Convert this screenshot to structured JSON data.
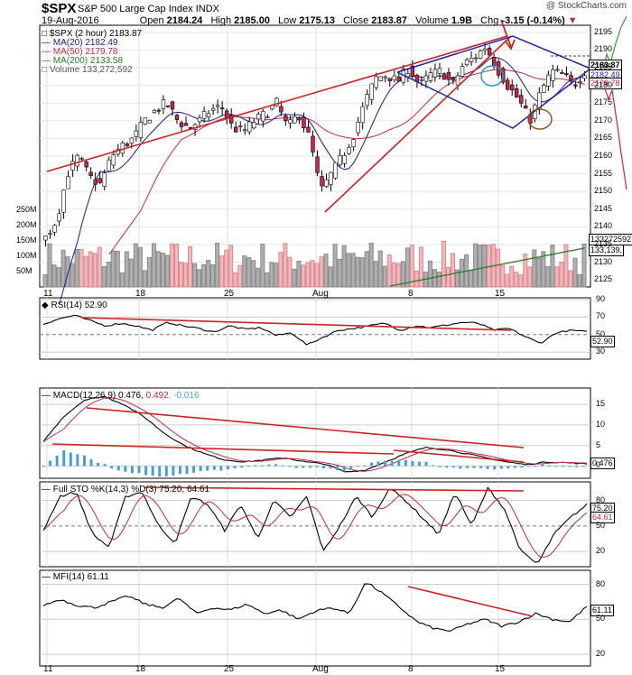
{
  "header": {
    "symbol": "$SPX",
    "name": "S&P 500 Large Cap Index",
    "exchange": "INDX",
    "date": "19-Aug-2016",
    "open_label": "Open",
    "open": "2184.24",
    "high_label": "High",
    "high": "2185.00",
    "low_label": "Low",
    "low": "2175.13",
    "close_label": "Close",
    "close": "2183.87",
    "volume_label": "Volume",
    "volume": "1.9B",
    "chg_label": "Chg",
    "chg": "-3.15 (-0.14%)",
    "watermark": "@ StockCharts.com"
  },
  "legend": {
    "price": "$SPX (2 hour) 2183.87",
    "ma20": "MA(20) 2182.49",
    "ma50": "MA(50) 2179.78",
    "ma200": "MA(200) 2133.58",
    "volume": "Volume 133,272,592"
  },
  "tags": {
    "close": "2183.87",
    "ma20": "2182.49",
    "ma50": "2179.78",
    "vol1": "133272592",
    "vol2": "133,139,"
  },
  "panels": {
    "rsi": {
      "label": "RSI(14) 52.90",
      "tag": "52.90"
    },
    "macd": {
      "label_a": "MACD(12,26,9) 0.476, ",
      "label_b": "0.492",
      "label_c": ", -0.016",
      "tag": "0.476"
    },
    "sto": {
      "label": "Full STO %K(14,3) %D(3) 75.20, 64.61",
      "tag_k": "75.20",
      "tag_d": "64.61"
    },
    "mfi": {
      "label": "MFI(14) 61.11",
      "tag": "61.11"
    }
  },
  "colors": {
    "up_candle": "#ffffff",
    "down_candle": "#c4284a",
    "ma20": "#1a1a99",
    "ma50": "#c4284a",
    "ma200": "#2a7a2a",
    "trend_red": "#cc2222",
    "trend_blue": "#2222aa",
    "vol_up": "#b0b0b0",
    "vol_down": "#f0b8c0",
    "macd_hist": "#4a9fcf"
  },
  "chart_data": [
    {
      "type": "candlestick",
      "panel": "price",
      "title": "$SPX S&P 500 Large Cap Index",
      "y_ticks": [
        2125,
        2130,
        2135,
        2140,
        2145,
        2150,
        2155,
        2160,
        2165,
        2170,
        2175,
        2180,
        2185,
        2190,
        2195
      ],
      "ylim": [
        2123,
        2197
      ],
      "x_tick_labels": [
        "11",
        "18",
        "25",
        "Aug",
        "8",
        "15"
      ],
      "series": [
        {
          "name": "$SPX (2 hour)",
          "last": 2183.87
        },
        {
          "name": "MA(20)",
          "last": 2182.49
        },
        {
          "name": "MA(50)",
          "last": 2179.78
        },
        {
          "name": "MA(200)",
          "last": 2133.58
        }
      ],
      "close_anchors": [
        2137,
        2142,
        2155,
        2160,
        2154,
        2152,
        2160,
        2163,
        2165,
        2170,
        2173,
        2175,
        2170,
        2168,
        2170,
        2173,
        2174,
        2168,
        2167,
        2170,
        2172,
        2175,
        2168,
        2172,
        2165,
        2150,
        2155,
        2160,
        2166,
        2175,
        2182,
        2183,
        2181,
        2185,
        2180,
        2183,
        2184,
        2180,
        2186,
        2188,
        2191,
        2185,
        2180,
        2176,
        2170,
        2178,
        2184,
        2183,
        2180,
        2184
      ]
    },
    {
      "type": "bar",
      "panel": "volume",
      "y_ticks_label": [
        "50M",
        "100M",
        "150M",
        "200M",
        "250M"
      ],
      "y_ticks": [
        50,
        100,
        150,
        200,
        250
      ],
      "ylim": [
        0,
        260
      ],
      "last": 133272592
    },
    {
      "type": "line",
      "panel": "rsi",
      "series": [
        {
          "name": "RSI(14)",
          "last": 52.9
        }
      ],
      "y_ticks": [
        30,
        50,
        70,
        90
      ],
      "ylim": [
        22,
        92
      ],
      "anchors": [
        62,
        68,
        72,
        66,
        60,
        63,
        60,
        55,
        64,
        60,
        57,
        53,
        60,
        56,
        58,
        49,
        52,
        38,
        47,
        55,
        57,
        60,
        63,
        55,
        60,
        58,
        61,
        64,
        63,
        55,
        57,
        48,
        40,
        52,
        55,
        53
      ]
    },
    {
      "type": "line",
      "panel": "macd",
      "series": [
        {
          "name": "MACD(12,26,9)",
          "last": 0.476
        },
        {
          "name": "Signal",
          "last": 0.492
        },
        {
          "name": "Histogram",
          "last": -0.016
        }
      ],
      "y_ticks": [
        0,
        5,
        10,
        15
      ],
      "ylim": [
        -3,
        19
      ],
      "anchors": [
        6,
        12,
        16,
        17,
        15,
        12,
        8,
        5,
        3,
        1.5,
        1,
        1.5,
        2,
        1,
        0.5,
        -1.5,
        -1,
        1,
        3,
        4.5,
        4,
        3,
        2,
        1,
        0.3,
        1,
        0.8,
        0.5
      ]
    },
    {
      "type": "line",
      "panel": "sto",
      "series": [
        {
          "name": "%K(14,3)",
          "last": 75.2
        },
        {
          "name": "%D(3)",
          "last": 64.61
        }
      ],
      "y_ticks": [
        20,
        50,
        80
      ],
      "ylim": [
        2,
        102
      ],
      "anchors": [
        45,
        85,
        90,
        40,
        25,
        85,
        90,
        50,
        30,
        85,
        75,
        45,
        75,
        35,
        80,
        60,
        85,
        20,
        50,
        85,
        60,
        95,
        80,
        60,
        40,
        90,
        50,
        95,
        70,
        20,
        5,
        40,
        60,
        75
      ]
    },
    {
      "type": "line",
      "panel": "mfi",
      "series": [
        {
          "name": "MFI(14)",
          "last": 61.11
        }
      ],
      "y_ticks": [
        20,
        50,
        80
      ],
      "ylim": [
        10,
        92
      ],
      "anchors": [
        62,
        67,
        62,
        60,
        65,
        70,
        63,
        60,
        68,
        55,
        60,
        58,
        63,
        55,
        58,
        50,
        57,
        60,
        55,
        82,
        72,
        60,
        48,
        42,
        40,
        46,
        50,
        44,
        48,
        55,
        50,
        48,
        61
      ]
    }
  ]
}
